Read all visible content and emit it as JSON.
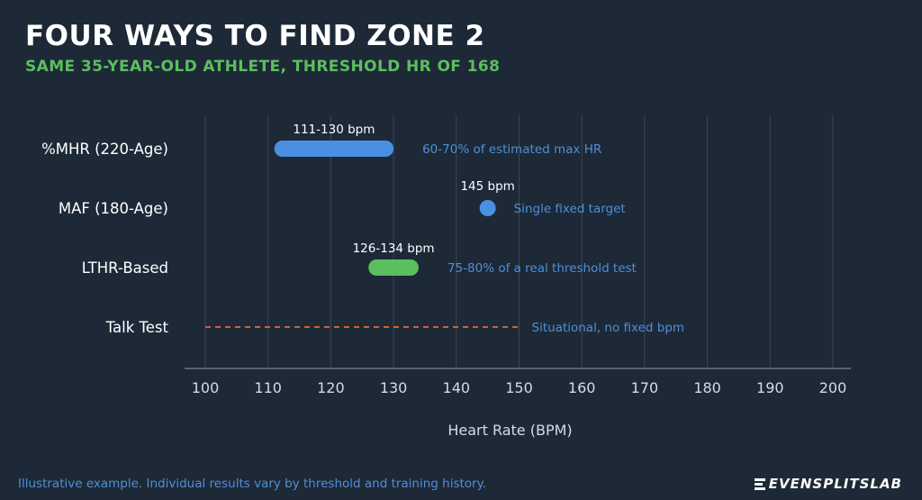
{
  "header": {
    "title": "FOUR WAYS TO FIND ZONE 2",
    "subtitle": "SAME 35-YEAR-OLD ATHLETE, THRESHOLD HR OF 168"
  },
  "footer": {
    "note": "Illustrative example. Individual results vary by threshold and training history.",
    "logo_text": "EVENSPLITSLAB"
  },
  "colors": {
    "background": "#1d2937",
    "blue": "#4a90e2",
    "green": "#5bbf5e",
    "orange": "#d4622a",
    "annotation": "#4f8fd8",
    "grid": "#3b4757",
    "axis": "#6b7685"
  },
  "chart_data": {
    "type": "range",
    "xlabel": "Heart Rate (BPM)",
    "xlim": [
      100,
      200
    ],
    "xticks": [
      100,
      110,
      120,
      130,
      140,
      150,
      160,
      170,
      180,
      190,
      200
    ],
    "grid": true,
    "rows": [
      {
        "name": "%MHR (220-Age)",
        "kind": "range",
        "start": 111,
        "end": 130,
        "value_label": "111-130 bpm",
        "note": "60-70% of estimated max HR",
        "color": "#4a90e2"
      },
      {
        "name": "MAF (180-Age)",
        "kind": "point",
        "start": 145,
        "end": 145,
        "value_label": "145 bpm",
        "note": "Single fixed target",
        "color": "#4a90e2"
      },
      {
        "name": "LTHR-Based",
        "kind": "range",
        "start": 126,
        "end": 134,
        "value_label": "126-134 bpm",
        "note": "75-80% of a real threshold test",
        "color": "#5bbf5e"
      },
      {
        "name": "Talk Test",
        "kind": "dashed",
        "start": 100,
        "end": 150,
        "value_label": "",
        "note": "Situational, no fixed bpm",
        "color": "#d4622a"
      }
    ]
  }
}
